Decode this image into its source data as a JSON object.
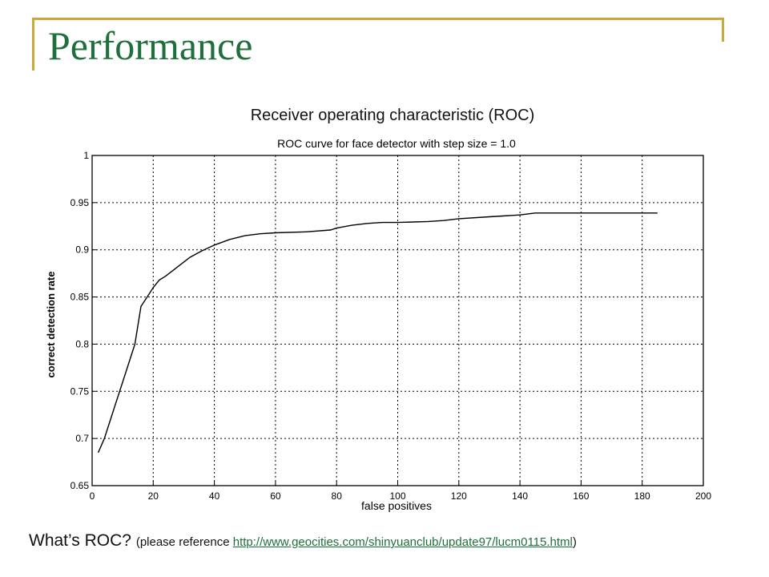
{
  "slide": {
    "title": "Performance",
    "caption": "Receiver operating characteristic (ROC)"
  },
  "footer": {
    "question": "What’s ROC?",
    "reference_prefix": "(please reference ",
    "link_text": "http://www.geocities.com/shinyuanclub/update97/lucm0115.html",
    "reference_suffix": ")"
  },
  "colors": {
    "title": "#1e6f3c",
    "accent": "#c9a93b",
    "link": "#1e6f3c"
  },
  "chart_data": {
    "type": "line",
    "title": "ROC curve for face detector with step size = 1.0",
    "xlabel": "false positives",
    "ylabel": "correct detection rate",
    "xlim": [
      0,
      200
    ],
    "ylim": [
      0.65,
      1
    ],
    "xticks": [
      0,
      20,
      40,
      60,
      80,
      100,
      120,
      140,
      160,
      180,
      200
    ],
    "yticks": [
      0.65,
      0.7,
      0.75,
      0.8,
      0.85,
      0.9,
      0.95,
      1
    ],
    "ytick_labels": [
      "0.65",
      "0.7",
      "0.75",
      "0.8",
      "0.85",
      "0.9",
      "0.95",
      "1"
    ],
    "grid": true,
    "series": [
      {
        "x": [
          2,
          4,
          6,
          8,
          10,
          12,
          14,
          15,
          16,
          18,
          20,
          22,
          24,
          28,
          32,
          36,
          40,
          45,
          50,
          55,
          60,
          70,
          78,
          80,
          85,
          90,
          95,
          100,
          110,
          115,
          120,
          130,
          140,
          145,
          150,
          160,
          170,
          180,
          185
        ],
        "y": [
          0.685,
          0.7,
          0.72,
          0.74,
          0.76,
          0.78,
          0.8,
          0.82,
          0.84,
          0.85,
          0.86,
          0.868,
          0.872,
          0.882,
          0.892,
          0.899,
          0.905,
          0.911,
          0.915,
          0.917,
          0.918,
          0.919,
          0.921,
          0.923,
          0.926,
          0.928,
          0.929,
          0.929,
          0.93,
          0.931,
          0.933,
          0.935,
          0.937,
          0.939,
          0.939,
          0.939,
          0.939,
          0.939,
          0.939
        ]
      }
    ]
  }
}
